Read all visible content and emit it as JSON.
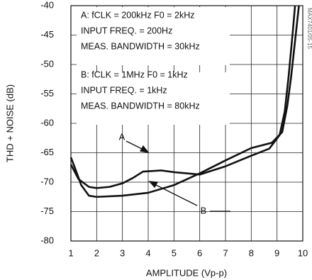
{
  "chart_data": {
    "type": "line",
    "x_label": "AMPLITUDE (Vp-p)",
    "y_label": "THD + NOISE (dB)",
    "xlim": [
      1,
      10
    ],
    "xticks": [
      1,
      2,
      3,
      4,
      5,
      6,
      7,
      8,
      9,
      10
    ],
    "ylim": [
      -80,
      -40
    ],
    "yticks": [
      -40,
      -45,
      -50,
      -55,
      -60,
      -65,
      -70,
      -75,
      -80
    ],
    "grid": true,
    "annotations": [
      "A: fCLK = 200kHz  F0 = 2kHz",
      "INPUT FREQ. = 200Hz",
      "MEAS. BANDWIDTH = 30kHz",
      "B:  fCLK = 1MHz  F0 = 1kHz",
      "INPUT FREQ. = 1kHz",
      "MEAS. BANDWIDTH = 80kHz",
      "MAX7401/05-15"
    ],
    "series": [
      {
        "name": "A",
        "color": "#111111",
        "x": [
          1,
          1.3,
          1.7,
          2,
          2.5,
          3,
          3.4,
          3.8,
          4.5,
          5,
          6,
          7,
          8,
          8.7,
          9.1,
          9.3,
          9.45,
          9.6,
          9.7
        ],
        "values": [
          -67,
          -69.5,
          -70.8,
          -71,
          -70.8,
          -70.2,
          -69.3,
          -68.2,
          -68,
          -68.3,
          -68.7,
          -67.3,
          -65.5,
          -64.3,
          -62,
          -58,
          -52,
          -45,
          -40
        ]
      },
      {
        "name": "B",
        "color": "#111111",
        "x": [
          1,
          1.15,
          1.4,
          1.7,
          2,
          3,
          4,
          5,
          6,
          7,
          8,
          8.8,
          9.2,
          9.4,
          9.55,
          9.7,
          9.85
        ],
        "values": [
          -65.8,
          -67.5,
          -70.5,
          -72.3,
          -72.5,
          -72.3,
          -71.8,
          -70.5,
          -68.5,
          -66.3,
          -64.2,
          -63.3,
          -61.5,
          -57,
          -52,
          -46,
          -40
        ]
      }
    ]
  }
}
